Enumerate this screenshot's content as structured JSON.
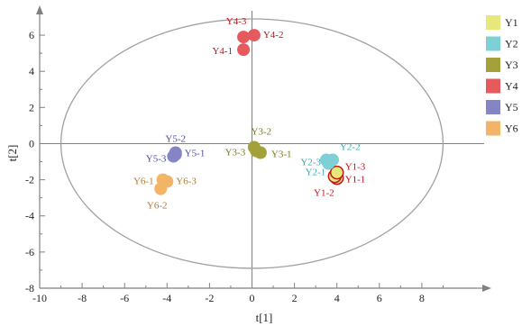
{
  "chart_data": {
    "type": "scatter",
    "xlabel": "t[1]",
    "ylabel": "t[2]",
    "xlim": [
      -10,
      10
    ],
    "ylim": [
      -8,
      7
    ],
    "xticks": [
      -10,
      -8,
      -6,
      -4,
      -2,
      0,
      2,
      4,
      6,
      8
    ],
    "yticks": [
      -8,
      -6,
      -4,
      -2,
      0,
      2,
      4,
      6
    ],
    "ellipse": {
      "cx": 0,
      "cy": 0,
      "rx": 9.0,
      "ry": 6.9
    },
    "legend_position": "right",
    "series": [
      {
        "name": "Y1",
        "color": "#e8e87a",
        "points": [
          {
            "label": "Y1-1",
            "x": 4.0,
            "y": -1.9
          },
          {
            "label": "Y1-2",
            "x": 3.9,
            "y": -1.8
          },
          {
            "label": "Y1-3",
            "x": 4.0,
            "y": -1.6
          }
        ]
      },
      {
        "name": "Y2",
        "color": "#7ed0d6",
        "points": [
          {
            "label": "Y2-1",
            "x": 3.6,
            "y": -1.1
          },
          {
            "label": "Y2-2",
            "x": 3.8,
            "y": -0.9
          },
          {
            "label": "Y2-3",
            "x": 3.5,
            "y": -0.9
          }
        ]
      },
      {
        "name": "Y3",
        "color": "#a3a23a",
        "points": [
          {
            "label": "Y3-1",
            "x": 0.4,
            "y": -0.5
          },
          {
            "label": "Y3-2",
            "x": 0.1,
            "y": -0.2
          },
          {
            "label": "Y3-3",
            "x": 0.2,
            "y": -0.4
          }
        ]
      },
      {
        "name": "Y4",
        "color": "#e65a5e",
        "points": [
          {
            "label": "Y4-1",
            "x": -0.4,
            "y": 5.2
          },
          {
            "label": "Y4-2",
            "x": 0.1,
            "y": 6.0
          },
          {
            "label": "Y4-3",
            "x": -0.4,
            "y": 5.9
          }
        ]
      },
      {
        "name": "Y5",
        "color": "#8585c6",
        "points": [
          {
            "label": "Y5-1",
            "x": -3.6,
            "y": -0.5
          },
          {
            "label": "Y5-2",
            "x": -3.6,
            "y": -0.6
          },
          {
            "label": "Y5-3",
            "x": -3.7,
            "y": -0.7
          }
        ]
      },
      {
        "name": "Y6",
        "color": "#f2b466",
        "points": [
          {
            "label": "Y6-1",
            "x": -4.2,
            "y": -2.0
          },
          {
            "label": "Y6-2",
            "x": -4.3,
            "y": -2.5
          },
          {
            "label": "Y6-3",
            "x": -4.0,
            "y": -2.1
          }
        ]
      }
    ],
    "label_colors": {
      "Y1": "#c0161c",
      "Y2": "#3aa8b2",
      "Y3": "#7a7a1e",
      "Y4": "#c0161c",
      "Y5": "#4a4aa8",
      "Y6": "#b07a30"
    }
  }
}
